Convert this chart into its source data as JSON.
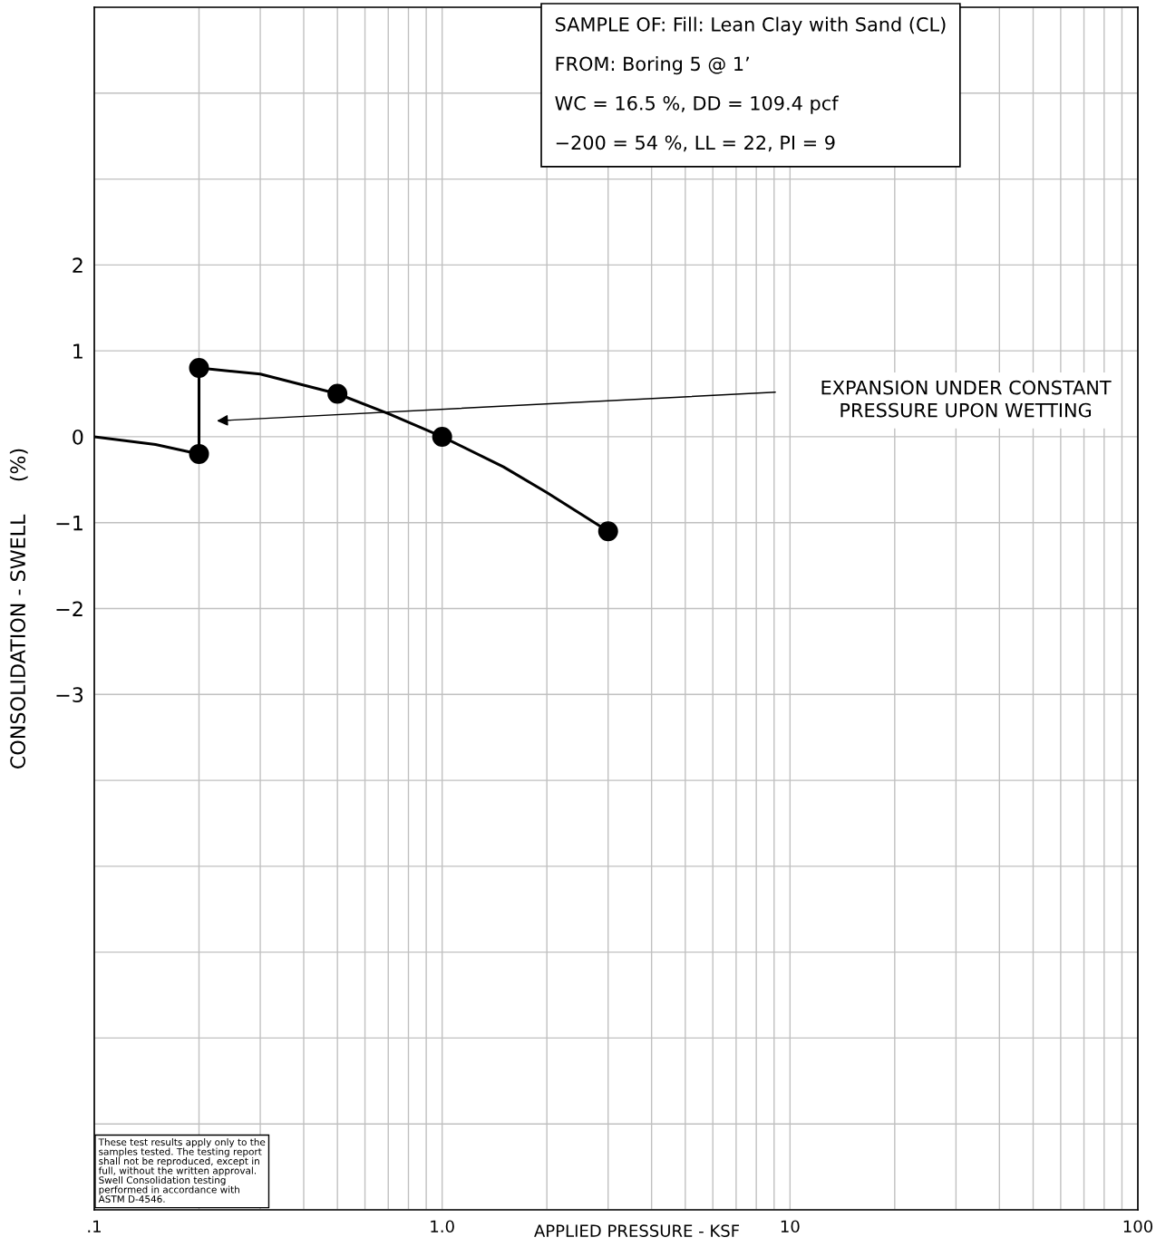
{
  "chart_data": {
    "type": "line",
    "xlabel": "APPLIED PRESSURE - KSF",
    "ylabel": "CONSOLIDATION - SWELL     (%)",
    "log": "x",
    "grid": true,
    "xlim": [
      0.1,
      100
    ],
    "ylim": [
      -9,
      5
    ],
    "xticks": [
      {
        "value": 0.1,
        "label": ".1"
      },
      {
        "value": 0.2,
        "label": null
      },
      {
        "value": 0.3,
        "label": null
      },
      {
        "value": 0.4,
        "label": null
      },
      {
        "value": 0.5,
        "label": null
      },
      {
        "value": 0.6,
        "label": null
      },
      {
        "value": 0.7,
        "label": null
      },
      {
        "value": 0.8,
        "label": null
      },
      {
        "value": 0.9,
        "label": null
      },
      {
        "value": 1,
        "label": "1.0"
      },
      {
        "value": 2,
        "label": null
      },
      {
        "value": 3,
        "label": null
      },
      {
        "value": 4,
        "label": null
      },
      {
        "value": 5,
        "label": null
      },
      {
        "value": 6,
        "label": null
      },
      {
        "value": 7,
        "label": null
      },
      {
        "value": 8,
        "label": null
      },
      {
        "value": 9,
        "label": null
      },
      10,
      {
        "value": 20,
        "label": null
      },
      {
        "value": 30,
        "label": null
      },
      {
        "value": 40,
        "label": null
      },
      {
        "value": 50,
        "label": null
      },
      {
        "value": 60,
        "label": null
      },
      {
        "value": 70,
        "label": null
      },
      {
        "value": 80,
        "label": null
      },
      {
        "value": 90,
        "label": null
      },
      100
    ],
    "yticks": [
      {
        "value": -9,
        "label": null
      },
      {
        "value": -8,
        "label": null
      },
      {
        "value": -7,
        "label": null
      },
      {
        "value": -6,
        "label": null
      },
      {
        "value": -5,
        "label": null
      },
      {
        "value": -4,
        "label": null
      },
      {
        "value": -3,
        "label": "−3"
      },
      {
        "value": -2,
        "label": "−2"
      },
      {
        "value": -1,
        "label": "−1"
      },
      0,
      1,
      2,
      {
        "value": 3,
        "label": null
      },
      {
        "value": 4,
        "label": null
      },
      {
        "value": 5,
        "label": null
      }
    ],
    "series": [
      {
        "color": "#000000",
        "marker": "none",
        "x": [
          0.1,
          0.15,
          0.2,
          0.2,
          0.3,
          0.5,
          0.7,
          1.0,
          1.5,
          2.0,
          3.0
        ],
        "values": [
          0,
          -0.09,
          -0.2,
          0.8,
          0.73,
          0.5,
          0.27,
          0,
          -0.35,
          -0.65,
          -1.1
        ]
      },
      {
        "type": "scatter",
        "color": "#000000",
        "marker": "circle",
        "x": [
          0.2,
          0.2,
          0.5,
          1.0,
          3.0
        ],
        "values": [
          -0.2,
          0.8,
          0.5,
          0,
          -1.1
        ]
      }
    ],
    "annotations": [
      "SAMPLE OF: Fill: Lean Clay with Sand (CL)\n\nFROM: Boring 5 @ 1’\n\nWC = 16.5 %, DD = 109.4 pcf\n\n−200 = 54 %, LL = 22, PI = 9",
      "These test results apply only to the\nsamples tested. The testing report\nshall not be reproduced, except in\nfull, without the written approval.\nSwell Consolidation testing\nperformed in accordance with\nASTM D-4546.",
      "EXPANSION UNDER CONSTANT\nPRESSURE UPON WETTING"
    ]
  }
}
